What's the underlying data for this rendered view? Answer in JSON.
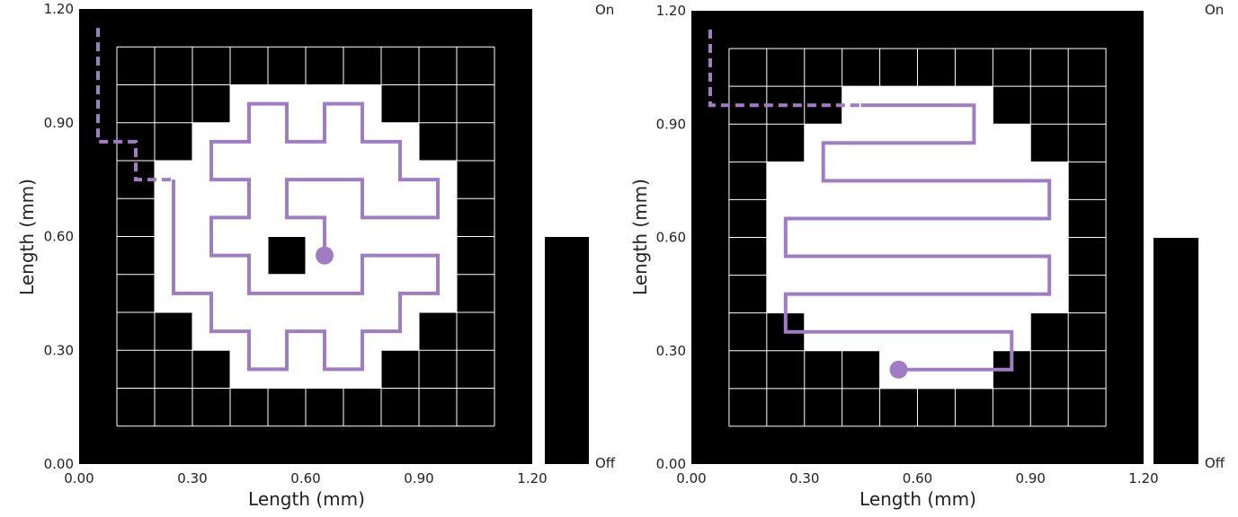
{
  "colors": {
    "on": "#000000",
    "off": "#ffffff",
    "path": "#a07cc5",
    "grid": "#ffffff"
  },
  "chart_data": [
    {
      "type": "heatmap",
      "xlabel": "Length (mm)",
      "ylabel": "Length (mm)",
      "xlim": [
        0,
        1.2
      ],
      "ylim": [
        0,
        1.2
      ],
      "xticks": [
        "0.00",
        "0.30",
        "0.60",
        "0.90",
        "1.20"
      ],
      "yticks": [
        "0.00",
        "0.30",
        "0.60",
        "0.90",
        "1.20"
      ],
      "colorbar": {
        "top_label": "On",
        "bottom_label": "Off"
      },
      "grid_cell_size": 0.1,
      "off_regions": [
        [
          [
            0.4,
            0.3
          ],
          [
            0.4,
            0.2
          ],
          [
            0.8,
            0.2
          ],
          [
            0.8,
            0.3
          ],
          [
            0.9,
            0.3
          ],
          [
            0.9,
            0.4
          ],
          [
            1.0,
            0.4
          ],
          [
            1.0,
            0.8
          ],
          [
            0.9,
            0.8
          ],
          [
            0.9,
            0.9
          ],
          [
            0.8,
            0.9
          ],
          [
            0.8,
            1.0
          ],
          [
            0.4,
            1.0
          ],
          [
            0.4,
            0.9
          ],
          [
            0.3,
            0.9
          ],
          [
            0.3,
            0.8
          ],
          [
            0.2,
            0.8
          ],
          [
            0.2,
            0.4
          ],
          [
            0.3,
            0.4
          ],
          [
            0.3,
            0.3
          ]
        ]
      ],
      "on_islands": [
        [
          [
            0.5,
            0.5
          ],
          [
            0.6,
            0.5
          ],
          [
            0.6,
            0.6
          ],
          [
            0.5,
            0.6
          ]
        ]
      ],
      "dashed_path": [
        [
          0.05,
          1.15
        ],
        [
          0.05,
          0.85
        ],
        [
          0.15,
          0.85
        ],
        [
          0.15,
          0.75
        ],
        [
          0.25,
          0.75
        ]
      ],
      "solid_path": [
        [
          0.25,
          0.75
        ],
        [
          0.25,
          0.45
        ],
        [
          0.35,
          0.45
        ],
        [
          0.35,
          0.35
        ],
        [
          0.45,
          0.35
        ],
        [
          0.45,
          0.25
        ],
        [
          0.55,
          0.25
        ],
        [
          0.55,
          0.35
        ],
        [
          0.65,
          0.35
        ],
        [
          0.65,
          0.25
        ],
        [
          0.75,
          0.25
        ],
        [
          0.75,
          0.35
        ],
        [
          0.85,
          0.35
        ],
        [
          0.85,
          0.45
        ],
        [
          0.95,
          0.45
        ],
        [
          0.95,
          0.55
        ],
        [
          0.75,
          0.55
        ],
        [
          0.75,
          0.45
        ],
        [
          0.45,
          0.45
        ],
        [
          0.45,
          0.55
        ],
        [
          0.35,
          0.55
        ],
        [
          0.35,
          0.65
        ],
        [
          0.45,
          0.65
        ],
        [
          0.45,
          0.75
        ],
        [
          0.35,
          0.75
        ],
        [
          0.35,
          0.85
        ],
        [
          0.45,
          0.85
        ],
        [
          0.45,
          0.95
        ],
        [
          0.55,
          0.95
        ],
        [
          0.55,
          0.85
        ],
        [
          0.65,
          0.85
        ],
        [
          0.65,
          0.95
        ],
        [
          0.75,
          0.95
        ],
        [
          0.75,
          0.85
        ],
        [
          0.85,
          0.85
        ],
        [
          0.85,
          0.75
        ],
        [
          0.95,
          0.75
        ],
        [
          0.95,
          0.65
        ],
        [
          0.75,
          0.65
        ],
        [
          0.75,
          0.75
        ],
        [
          0.55,
          0.75
        ],
        [
          0.55,
          0.65
        ],
        [
          0.65,
          0.65
        ],
        [
          0.65,
          0.55
        ]
      ],
      "end_point": [
        0.65,
        0.55
      ]
    },
    {
      "type": "heatmap",
      "xlabel": "Length (mm)",
      "ylabel": "Length (mm)",
      "xlim": [
        0,
        1.2
      ],
      "ylim": [
        0,
        1.2
      ],
      "xticks": [
        "0.00",
        "0.30",
        "0.60",
        "0.90",
        "1.20"
      ],
      "yticks": [
        "0.00",
        "0.30",
        "0.60",
        "0.90",
        "1.20"
      ],
      "colorbar": {
        "top_label": "On",
        "bottom_label": "Off"
      },
      "grid_cell_size": 0.1,
      "off_regions": [
        [
          [
            0.5,
            0.2
          ],
          [
            0.8,
            0.2
          ],
          [
            0.8,
            0.3
          ],
          [
            0.9,
            0.3
          ],
          [
            0.9,
            0.4
          ],
          [
            1.0,
            0.4
          ],
          [
            1.0,
            0.8
          ],
          [
            0.9,
            0.8
          ],
          [
            0.9,
            0.9
          ],
          [
            0.8,
            0.9
          ],
          [
            0.8,
            1.0
          ],
          [
            0.4,
            1.0
          ],
          [
            0.4,
            0.9
          ],
          [
            0.3,
            0.9
          ],
          [
            0.3,
            0.8
          ],
          [
            0.2,
            0.8
          ],
          [
            0.2,
            0.4
          ],
          [
            0.3,
            0.4
          ],
          [
            0.3,
            0.3
          ],
          [
            0.5,
            0.3
          ]
        ]
      ],
      "on_islands": [],
      "dashed_path": [
        [
          0.05,
          1.15
        ],
        [
          0.05,
          0.95
        ],
        [
          0.45,
          0.95
        ]
      ],
      "solid_path": [
        [
          0.45,
          0.95
        ],
        [
          0.75,
          0.95
        ],
        [
          0.75,
          0.85
        ],
        [
          0.35,
          0.85
        ],
        [
          0.35,
          0.75
        ],
        [
          0.95,
          0.75
        ],
        [
          0.95,
          0.65
        ],
        [
          0.25,
          0.65
        ],
        [
          0.25,
          0.55
        ],
        [
          0.95,
          0.55
        ],
        [
          0.95,
          0.45
        ],
        [
          0.25,
          0.45
        ],
        [
          0.25,
          0.35
        ],
        [
          0.85,
          0.35
        ],
        [
          0.85,
          0.25
        ],
        [
          0.55,
          0.25
        ]
      ],
      "end_point": [
        0.55,
        0.25
      ]
    }
  ]
}
